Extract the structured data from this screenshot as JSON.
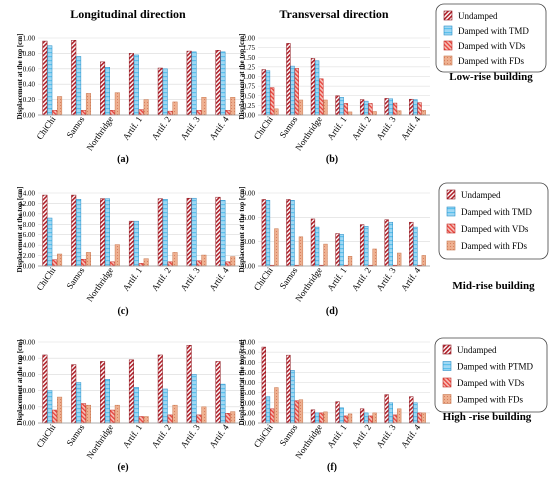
{
  "figure": {
    "header_left": "Longitudinal direction",
    "header_right": "Transversal direction",
    "ylabel": "Displacement at the top [cm]",
    "colors": {
      "undamped": "#b0202a",
      "tmd": "#4fb8e8",
      "vds": "#e8403a",
      "fds": "#e8a27c"
    },
    "groups": [
      {
        "name": "Low-rise building",
        "legend": [
          "Undamped",
          "Damped with TMD",
          "Damped with VDs",
          "Damped with FDs"
        ]
      },
      {
        "name": "Mid-rise building",
        "legend": [
          "Undamped",
          "Damped with TMD",
          "Damped with VDs",
          "Damped with FDs"
        ]
      },
      {
        "name": "High -rise building",
        "legend": [
          "Undamped",
          "Damped with PTMD",
          "Damped with VDs",
          "Damped with FDs"
        ]
      }
    ]
  },
  "chart_data": [
    {
      "type": "bar",
      "panel": "(a)",
      "row": 0,
      "col": 0,
      "categories": [
        "ChiChi",
        "Samos",
        "Northridge",
        "Artif. 1",
        "Artif. 2",
        "Artif. 3",
        "Artif. 4"
      ],
      "ylim": [
        0,
        1.0
      ],
      "yticks": [
        "0.00",
        "0.20",
        "0.40",
        "0.60",
        "0.80",
        "1.00"
      ],
      "series": [
        {
          "name": "Undamped",
          "values": [
            0.96,
            0.97,
            0.69,
            0.8,
            0.61,
            0.83,
            0.84
          ]
        },
        {
          "name": "Damped with TMD",
          "values": [
            0.9,
            0.76,
            0.62,
            0.78,
            0.6,
            0.82,
            0.82
          ]
        },
        {
          "name": "Damped with VDs",
          "values": [
            0.06,
            0.06,
            0.06,
            0.07,
            0.05,
            0.06,
            0.06
          ]
        },
        {
          "name": "Damped with FDs",
          "values": [
            0.24,
            0.28,
            0.29,
            0.2,
            0.17,
            0.23,
            0.23
          ]
        }
      ]
    },
    {
      "type": "bar",
      "panel": "(b)",
      "row": 0,
      "col": 1,
      "categories": [
        "ChiChi",
        "Samos",
        "Northridge",
        "Artif. 1",
        "Artif. 2",
        "Artif. 3",
        "Artif. 4"
      ],
      "ylim": [
        0,
        2.0
      ],
      "yticks": [
        "0.00",
        "0.25",
        "0.50",
        "0.75",
        "1.00",
        "1.25",
        "1.50",
        "1.75",
        "2.00"
      ],
      "series": [
        {
          "name": "Undamped",
          "values": [
            1.18,
            1.86,
            1.47,
            0.5,
            0.4,
            0.43,
            0.41
          ]
        },
        {
          "name": "Damped with TMD",
          "values": [
            1.15,
            1.27,
            1.41,
            0.46,
            0.36,
            0.42,
            0.4
          ]
        },
        {
          "name": "Damped with VDs",
          "values": [
            0.71,
            1.21,
            0.94,
            0.3,
            0.3,
            0.31,
            0.32
          ]
        },
        {
          "name": "Damped with FDs",
          "values": [
            0.16,
            0.39,
            0.39,
            0.08,
            0.09,
            0.11,
            0.12
          ]
        }
      ]
    },
    {
      "type": "bar",
      "panel": "(c)",
      "row": 1,
      "col": 0,
      "categories": [
        "ChiChi",
        "Samos",
        "Northridge",
        "Artif. 1",
        "Artif. 2",
        "Artif. 3",
        "Artif. 4"
      ],
      "ylim": [
        0,
        14.0
      ],
      "yticks": [
        "0.00",
        "2.00",
        "4.00",
        "6.00",
        "8.00",
        "10.00",
        "12.00",
        "14.00"
      ],
      "series": [
        {
          "name": "Undamped",
          "values": [
            13.6,
            13.6,
            12.9,
            8.6,
            12.9,
            13.0,
            13.2
          ]
        },
        {
          "name": "Damped with TMD",
          "values": [
            9.2,
            12.8,
            12.9,
            8.6,
            12.8,
            13.0,
            12.6
          ]
        },
        {
          "name": "Damped with VDs",
          "values": [
            1.2,
            1.3,
            0.8,
            0.5,
            0.8,
            1.0,
            0.8
          ]
        },
        {
          "name": "Damped with FDs",
          "values": [
            2.3,
            2.6,
            4.1,
            1.4,
            2.6,
            2.1,
            1.8
          ]
        }
      ]
    },
    {
      "type": "bar",
      "panel": "(d)",
      "row": 1,
      "col": 1,
      "categories": [
        "ChiChi",
        "Samos",
        "Northridge",
        "Artif. 1",
        "Artif. 2",
        "Artif. 3",
        "Artif. 4"
      ],
      "ylim": [
        0,
        9.0
      ],
      "yticks": [
        "0.00",
        "3.00",
        "6.00",
        "9.00"
      ],
      "series": [
        {
          "name": "Undamped",
          "values": [
            8.2,
            8.2,
            5.8,
            4.0,
            5.1,
            5.7,
            5.4
          ]
        },
        {
          "name": "Damped with TMD",
          "values": [
            8.1,
            8.1,
            4.8,
            3.9,
            4.9,
            5.4,
            4.8
          ]
        },
        {
          "name": "Damped with VDs",
          "values": [
            0.1,
            0.1,
            0.1,
            0.1,
            0.1,
            0.1,
            0.1
          ]
        },
        {
          "name": "Damped with FDs",
          "values": [
            4.6,
            3.6,
            2.7,
            1.2,
            2.1,
            1.6,
            1.3
          ]
        }
      ]
    },
    {
      "type": "bar",
      "panel": "(e)",
      "row": 2,
      "col": 0,
      "categories": [
        "ChiChi",
        "Samos",
        "Northridge",
        "Artif. 1",
        "Artif. 2",
        "Artif. 3",
        "Artif. 4"
      ],
      "ylim": [
        0,
        50.0
      ],
      "yticks": [
        "0.00",
        "10.00",
        "20.00",
        "30.00",
        "40.00",
        "50.00"
      ],
      "series": [
        {
          "name": "Undamped",
          "values": [
            42,
            36,
            38,
            39,
            42,
            48,
            38
          ]
        },
        {
          "name": "Damped with PTMD",
          "values": [
            20,
            25,
            27,
            22,
            21,
            30,
            24
          ]
        },
        {
          "name": "Damped with VDs",
          "values": [
            8,
            12,
            8,
            4,
            5,
            5,
            6
          ]
        },
        {
          "name": "Damped with FDs",
          "values": [
            16,
            11,
            11,
            4,
            11,
            10,
            7
          ]
        }
      ]
    },
    {
      "type": "bar",
      "panel": "(f)",
      "row": 2,
      "col": 1,
      "categories": [
        "ChiChi",
        "Samos",
        "Northridge",
        "Artif. 1",
        "Artif. 2",
        "Artif. 3",
        "Artif. 4"
      ],
      "ylim": [
        0,
        40.0
      ],
      "yticks": [
        "0.00",
        "5.00",
        "10.00",
        "15.00",
        "20.00",
        "25.00",
        "30.00",
        "35.00",
        "40.00"
      ],
      "series": [
        {
          "name": "Undamped",
          "values": [
            37.5,
            33.5,
            6.5,
            10.5,
            7.0,
            14.0,
            13.0
          ]
        },
        {
          "name": "Damped with PTMD",
          "values": [
            13.0,
            26.0,
            5.0,
            7.5,
            5.0,
            10.0,
            10.0
          ]
        },
        {
          "name": "Damped with VDs",
          "values": [
            7.0,
            11.0,
            5.0,
            3.5,
            3.5,
            4.0,
            5.0
          ]
        },
        {
          "name": "Damped with FDs",
          "values": [
            17.5,
            11.5,
            5.5,
            4.5,
            5.0,
            7.0,
            5.0
          ]
        }
      ]
    }
  ]
}
